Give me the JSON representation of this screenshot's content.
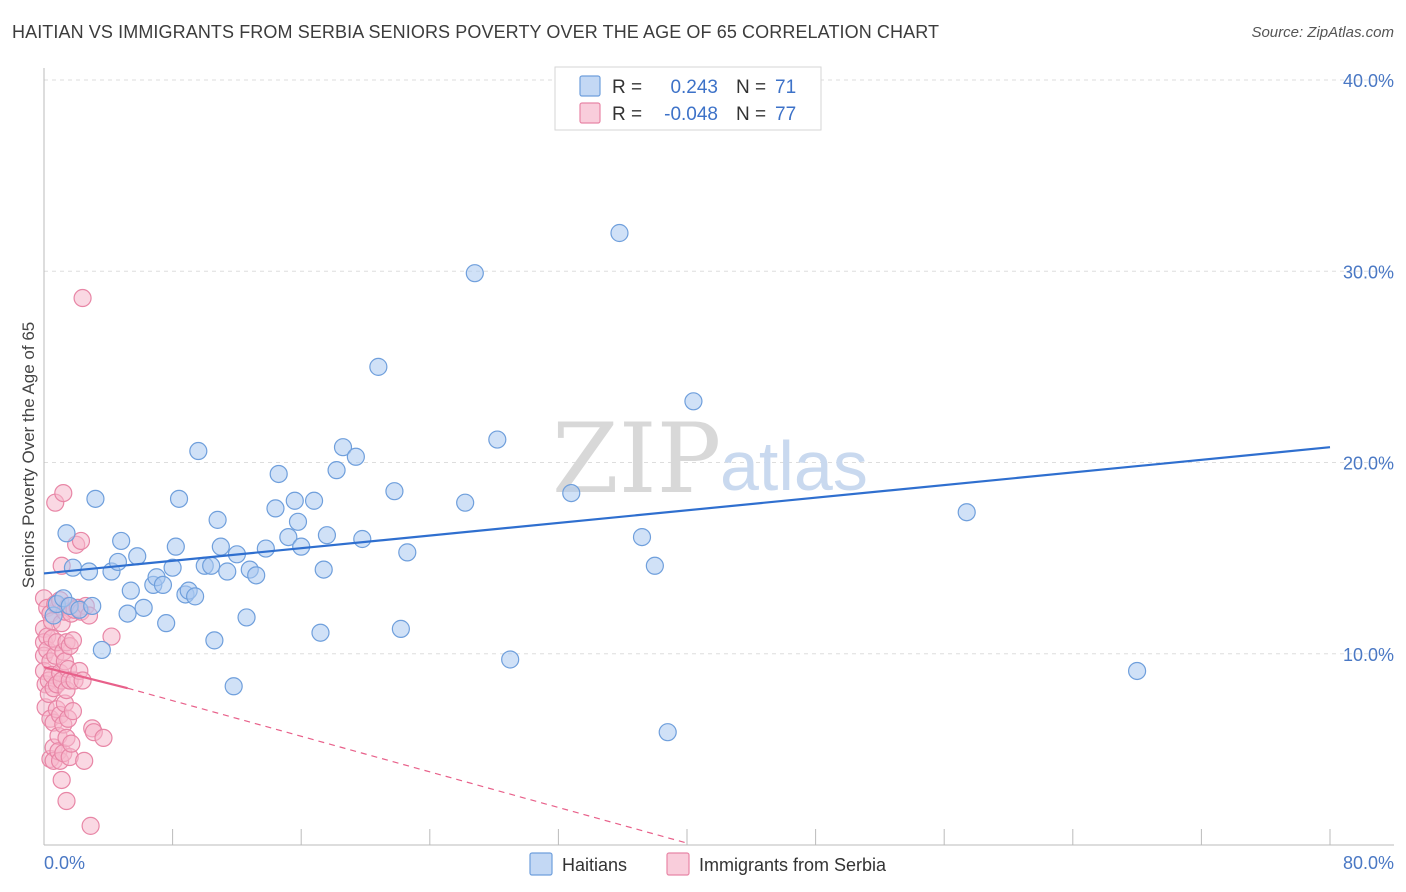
{
  "title": "HAITIAN VS IMMIGRANTS FROM SERBIA SENIORS POVERTY OVER THE AGE OF 65 CORRELATION CHART",
  "source": "Source: ZipAtlas.com",
  "watermark": {
    "zip": "ZIP",
    "atlas": "atlas"
  },
  "colors": {
    "haitians_fill": "#aac8f0",
    "haitians_stroke": "#6f9fdc",
    "haitians_line": "#2f6fcf",
    "serbia_fill": "#f6b8cc",
    "serbia_stroke": "#e886a6",
    "serbia_line": "#e8608a",
    "grid": "#dddddd",
    "tick_text": "#4a78c4"
  },
  "legend": {
    "rows": [
      {
        "r_label": "R =",
        "r_value": "0.243",
        "n_label": "N =",
        "n_value": "71"
      },
      {
        "r_label": "R =",
        "r_value": "-0.048",
        "n_label": "N =",
        "n_value": "77"
      }
    ]
  },
  "chart_data": {
    "type": "scatter",
    "ylabel": "Seniors Poverty Over the Age of 65",
    "xlim": [
      0,
      80
    ],
    "ylim": [
      0,
      40
    ],
    "x_tick_labels": [
      "0.0%",
      "80.0%"
    ],
    "y_ticks": [
      10,
      20,
      30,
      40
    ],
    "y_tick_labels": [
      "10.0%",
      "20.0%",
      "30.0%",
      "40.0%"
    ],
    "grid": "horizontal dashed",
    "series": [
      {
        "name": "Haitians",
        "trend": {
          "x": [
            0,
            80
          ],
          "y": [
            14.2,
            20.8
          ],
          "style": "solid"
        },
        "points": [
          [
            0.6,
            12.0
          ],
          [
            0.8,
            12.6
          ],
          [
            1.2,
            12.9
          ],
          [
            1.4,
            16.3
          ],
          [
            1.6,
            12.5
          ],
          [
            1.8,
            14.5
          ],
          [
            2.2,
            12.3
          ],
          [
            2.8,
            14.3
          ],
          [
            3.0,
            12.5
          ],
          [
            3.2,
            18.1
          ],
          [
            3.6,
            10.2
          ],
          [
            4.2,
            14.3
          ],
          [
            4.6,
            14.8
          ],
          [
            4.8,
            15.9
          ],
          [
            5.2,
            12.1
          ],
          [
            5.4,
            13.3
          ],
          [
            5.8,
            15.1
          ],
          [
            6.2,
            12.4
          ],
          [
            6.8,
            13.6
          ],
          [
            7.0,
            14.0
          ],
          [
            7.4,
            13.6
          ],
          [
            7.6,
            11.6
          ],
          [
            8.0,
            14.5
          ],
          [
            8.2,
            15.6
          ],
          [
            8.4,
            18.1
          ],
          [
            8.8,
            13.1
          ],
          [
            9.0,
            13.3
          ],
          [
            9.4,
            13.0
          ],
          [
            9.6,
            20.6
          ],
          [
            10.0,
            14.6
          ],
          [
            10.4,
            14.6
          ],
          [
            10.6,
            10.7
          ],
          [
            10.8,
            17.0
          ],
          [
            11.0,
            15.6
          ],
          [
            11.4,
            14.3
          ],
          [
            11.8,
            8.3
          ],
          [
            12.0,
            15.2
          ],
          [
            12.6,
            11.9
          ],
          [
            12.8,
            14.4
          ],
          [
            13.2,
            14.1
          ],
          [
            13.8,
            15.5
          ],
          [
            14.4,
            17.6
          ],
          [
            14.6,
            19.4
          ],
          [
            15.2,
            16.1
          ],
          [
            15.6,
            18.0
          ],
          [
            15.8,
            16.9
          ],
          [
            16.0,
            15.6
          ],
          [
            16.8,
            18.0
          ],
          [
            17.2,
            11.1
          ],
          [
            17.4,
            14.4
          ],
          [
            17.6,
            16.2
          ],
          [
            18.2,
            19.6
          ],
          [
            18.6,
            20.8
          ],
          [
            19.4,
            20.3
          ],
          [
            19.8,
            16.0
          ],
          [
            20.8,
            25.0
          ],
          [
            21.8,
            18.5
          ],
          [
            22.2,
            11.3
          ],
          [
            22.6,
            15.3
          ],
          [
            26.2,
            17.9
          ],
          [
            26.8,
            29.9
          ],
          [
            28.2,
            21.2
          ],
          [
            29.0,
            9.7
          ],
          [
            32.8,
            18.4
          ],
          [
            35.8,
            32.0
          ],
          [
            37.2,
            16.1
          ],
          [
            38.0,
            14.6
          ],
          [
            38.8,
            5.9
          ],
          [
            40.4,
            23.2
          ],
          [
            57.4,
            17.4
          ],
          [
            68.0,
            9.1
          ]
        ]
      },
      {
        "name": "Immigrants from Serbia",
        "trend": {
          "x": [
            0,
            5.2,
            40
          ],
          "y": [
            9.3,
            8.2,
            0.1
          ],
          "style": "solid then dashed"
        },
        "points": [
          [
            0.0,
            12.9
          ],
          [
            0.0,
            11.3
          ],
          [
            0.0,
            10.6
          ],
          [
            0.0,
            9.9
          ],
          [
            0.0,
            9.1
          ],
          [
            0.1,
            8.4
          ],
          [
            0.1,
            7.2
          ],
          [
            0.2,
            12.4
          ],
          [
            0.2,
            10.9
          ],
          [
            0.2,
            10.2
          ],
          [
            0.3,
            8.6
          ],
          [
            0.3,
            7.9
          ],
          [
            0.4,
            12.1
          ],
          [
            0.4,
            9.6
          ],
          [
            0.4,
            6.6
          ],
          [
            0.4,
            4.5
          ],
          [
            0.5,
            11.7
          ],
          [
            0.5,
            10.8
          ],
          [
            0.5,
            8.9
          ],
          [
            0.6,
            8.2
          ],
          [
            0.6,
            6.4
          ],
          [
            0.6,
            5.1
          ],
          [
            0.6,
            4.4
          ],
          [
            0.7,
            17.9
          ],
          [
            0.7,
            12.6
          ],
          [
            0.7,
            9.9
          ],
          [
            0.8,
            10.6
          ],
          [
            0.8,
            8.4
          ],
          [
            0.8,
            7.1
          ],
          [
            0.9,
            5.7
          ],
          [
            0.9,
            4.9
          ],
          [
            1.0,
            12.8
          ],
          [
            1.0,
            9.0
          ],
          [
            1.0,
            6.8
          ],
          [
            1.0,
            4.4
          ],
          [
            1.1,
            14.6
          ],
          [
            1.1,
            11.6
          ],
          [
            1.1,
            8.6
          ],
          [
            1.1,
            3.4
          ],
          [
            1.2,
            18.4
          ],
          [
            1.2,
            10.1
          ],
          [
            1.2,
            6.3
          ],
          [
            1.2,
            4.8
          ],
          [
            1.3,
            12.2
          ],
          [
            1.3,
            9.6
          ],
          [
            1.3,
            7.4
          ],
          [
            1.4,
            10.6
          ],
          [
            1.4,
            8.1
          ],
          [
            1.4,
            5.6
          ],
          [
            1.4,
            2.3
          ],
          [
            1.5,
            12.5
          ],
          [
            1.5,
            9.2
          ],
          [
            1.5,
            6.6
          ],
          [
            1.6,
            10.4
          ],
          [
            1.6,
            8.6
          ],
          [
            1.6,
            4.6
          ],
          [
            1.7,
            12.1
          ],
          [
            1.7,
            5.3
          ],
          [
            1.8,
            10.7
          ],
          [
            1.8,
            7.0
          ],
          [
            1.9,
            12.3
          ],
          [
            1.9,
            8.6
          ],
          [
            2.0,
            15.7
          ],
          [
            2.1,
            12.4
          ],
          [
            2.2,
            9.1
          ],
          [
            2.3,
            15.9
          ],
          [
            2.3,
            12.2
          ],
          [
            2.4,
            28.6
          ],
          [
            2.4,
            8.6
          ],
          [
            2.5,
            4.4
          ],
          [
            2.6,
            12.5
          ],
          [
            2.8,
            12.0
          ],
          [
            2.9,
            1.0
          ],
          [
            3.0,
            6.1
          ],
          [
            3.1,
            5.9
          ],
          [
            3.7,
            5.6
          ],
          [
            4.2,
            10.9
          ]
        ]
      }
    ]
  },
  "bottom_legend": [
    "Haitians",
    "Immigrants from Serbia"
  ]
}
